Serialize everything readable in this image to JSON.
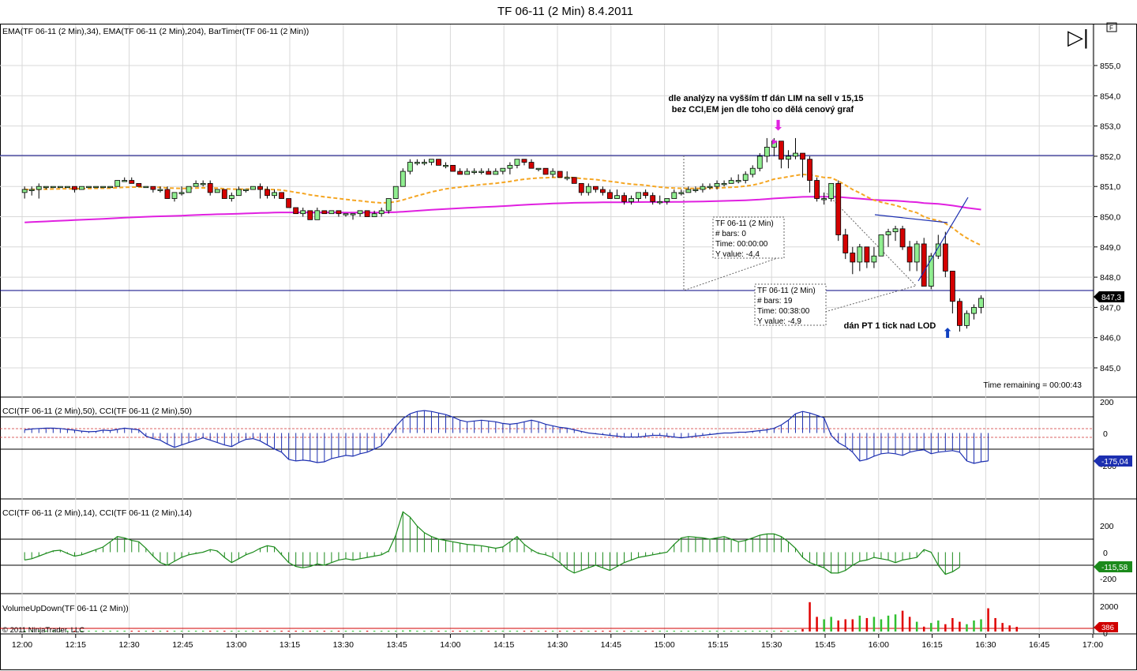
{
  "window": {
    "title": "TF 06-11 (2 Min)  8.4.2011"
  },
  "toolbar": {
    "play_glyph": "▷|",
    "pin_label": "F"
  },
  "price_panel": {
    "indicator_label": "EMA(TF 06-11 (2 Min),34), EMA(TF 06-11 (2 Min),204), BarTimer(TF 06-11 (2 Min))",
    "annotation_1": "dle analýzy na vyšším tf dán LIM na sell v 15,15",
    "annotation_2": "bez CCI,EM jen dle toho co dělá cenový graf",
    "annotation_3": "dán PT 1 tick  nad LOD",
    "time_remaining": "Time remaining = 00:00:43",
    "last_price_label": "847,3",
    "y_ticks": [
      "855,0",
      "854,0",
      "853,0",
      "852,0",
      "851,0",
      "850,0",
      "849,0",
      "848,0",
      "847,0",
      "846,0",
      "845,0"
    ],
    "measure_box_1": [
      "TF 06-11 (2 Min)",
      "# bars:    0",
      "Time:      00:00:00",
      "Y value:  -4,4"
    ],
    "measure_box_2": [
      "TF 06-11 (2 Min)",
      "# bars:    19",
      "Time:      00:38:00",
      "Y value:  -4,9"
    ],
    "colors": {
      "up_candle": "#90EE90",
      "down_candle": "#D40000",
      "ema34": "#F5A623",
      "ema204": "#E020E0",
      "lines": "#000080"
    }
  },
  "cci50_panel": {
    "label": "CCI(TF 06-11 (2 Min),50), CCI(TF 06-11 (2 Min),50)",
    "y_ticks": [
      "200",
      "0",
      "-200"
    ],
    "last_value": "-175,04",
    "color": "#1C2FB0"
  },
  "cci14_panel": {
    "label": "CCI(TF 06-11 (2 Min),14), CCI(TF 06-11 (2 Min),14)",
    "y_ticks": [
      "200",
      "0",
      "-200"
    ],
    "last_value": "-115,58",
    "color": "#1B8A1B"
  },
  "volume_panel": {
    "label": "VolumeUpDown(TF 06-11 (2 Min))",
    "copyright": "© 2011 NinjaTrader, LLC",
    "y_ticks": [
      "2000",
      "0"
    ],
    "last_value": "386"
  },
  "x_axis": {
    "ticks": [
      "12:00",
      "12:15",
      "12:30",
      "12:45",
      "13:00",
      "13:15",
      "13:30",
      "13:45",
      "14:00",
      "14:15",
      "14:30",
      "14:45",
      "15:00",
      "15:15",
      "15:30",
      "15:45",
      "16:00",
      "16:15",
      "16:30",
      "16:45",
      "17:00"
    ]
  },
  "chart_data": {
    "type": "candlestick",
    "title": "TF 06-11 (2 Min)  8.4.2011",
    "x_start": "12:00",
    "x_end": "17:00",
    "bar_interval_min": 2,
    "price_range": [
      844.3,
      856.0
    ],
    "candles_ohlc": [
      [
        850.8,
        851.0,
        850.6,
        850.9
      ],
      [
        850.9,
        851.0,
        850.7,
        850.9
      ],
      [
        850.9,
        851.1,
        850.6,
        851.0
      ],
      [
        851.0,
        851.0,
        850.9,
        851.0
      ],
      [
        851.0,
        851.0,
        851.0,
        851.0
      ],
      [
        851.0,
        851.0,
        851.0,
        851.0
      ],
      [
        851.0,
        851.0,
        851.0,
        851.0
      ],
      [
        851.0,
        851.0,
        850.8,
        850.9
      ],
      [
        850.9,
        851.0,
        850.9,
        851.0
      ],
      [
        851.0,
        851.0,
        851.0,
        851.0
      ],
      [
        851.0,
        851.0,
        851.0,
        851.0
      ],
      [
        851.0,
        851.0,
        851.0,
        851.0
      ],
      [
        851.0,
        851.0,
        851.0,
        851.0
      ],
      [
        851.0,
        851.2,
        851.0,
        851.2
      ],
      [
        851.2,
        851.3,
        851.2,
        851.2
      ],
      [
        851.2,
        851.3,
        851.1,
        851.1
      ],
      [
        851.1,
        851.1,
        851.0,
        851.0
      ],
      [
        851.0,
        851.0,
        851.0,
        851.0
      ],
      [
        851.0,
        851.0,
        850.8,
        850.9
      ],
      [
        850.9,
        851.0,
        850.8,
        850.9
      ],
      [
        850.9,
        851.0,
        850.6,
        850.6
      ],
      [
        850.6,
        850.8,
        850.5,
        850.8
      ],
      [
        850.8,
        851.0,
        850.7,
        850.8
      ],
      [
        850.8,
        851.0,
        850.8,
        851.0
      ],
      [
        851.0,
        851.2,
        851.0,
        851.1
      ],
      [
        851.1,
        851.2,
        851.0,
        851.1
      ],
      [
        851.1,
        851.2,
        850.7,
        850.8
      ],
      [
        850.8,
        850.9,
        850.8,
        850.9
      ],
      [
        850.9,
        850.9,
        850.6,
        850.6
      ],
      [
        850.6,
        850.8,
        850.5,
        850.7
      ],
      [
        850.7,
        851.0,
        850.7,
        850.9
      ],
      [
        850.9,
        850.9,
        850.8,
        850.9
      ],
      [
        850.9,
        851.0,
        850.9,
        851.0
      ],
      [
        851.0,
        851.1,
        850.6,
        850.9
      ],
      [
        850.9,
        851.0,
        850.6,
        850.7
      ],
      [
        850.7,
        850.9,
        850.6,
        850.8
      ],
      [
        850.8,
        850.8,
        850.6,
        850.6
      ],
      [
        850.6,
        850.6,
        850.3,
        850.3
      ],
      [
        850.3,
        850.3,
        850.1,
        850.1
      ],
      [
        850.1,
        850.3,
        850.0,
        850.2
      ],
      [
        850.2,
        850.2,
        849.9,
        849.9
      ],
      [
        849.9,
        850.3,
        849.9,
        850.2
      ],
      [
        850.2,
        850.2,
        850.1,
        850.1
      ],
      [
        850.1,
        850.2,
        850.1,
        850.2
      ],
      [
        850.2,
        850.2,
        850.0,
        850.1
      ],
      [
        850.1,
        850.1,
        850.0,
        850.1
      ],
      [
        850.1,
        850.1,
        849.9,
        850.1
      ],
      [
        850.1,
        850.2,
        850.0,
        850.2
      ],
      [
        850.2,
        850.2,
        850.0,
        850.0
      ],
      [
        850.0,
        850.2,
        850.0,
        850.1
      ],
      [
        850.1,
        850.3,
        850.0,
        850.2
      ],
      [
        850.2,
        850.6,
        850.1,
        850.6
      ],
      [
        850.6,
        851.0,
        850.6,
        851.0
      ],
      [
        851.0,
        851.6,
        851.0,
        851.5
      ],
      [
        851.5,
        851.9,
        851.4,
        851.8
      ],
      [
        851.8,
        851.9,
        851.7,
        851.8
      ],
      [
        851.8,
        851.9,
        851.7,
        851.8
      ],
      [
        851.8,
        851.9,
        851.7,
        851.9
      ],
      [
        851.9,
        851.9,
        851.7,
        851.7
      ],
      [
        851.7,
        851.8,
        851.6,
        851.7
      ],
      [
        851.7,
        851.7,
        851.5,
        851.5
      ],
      [
        851.5,
        851.6,
        851.4,
        851.4
      ],
      [
        851.4,
        851.6,
        851.4,
        851.5
      ],
      [
        851.5,
        851.6,
        851.4,
        851.5
      ],
      [
        851.5,
        851.6,
        851.4,
        851.5
      ],
      [
        851.5,
        851.6,
        851.4,
        851.4
      ],
      [
        851.4,
        851.6,
        851.4,
        851.5
      ],
      [
        851.5,
        851.6,
        851.4,
        851.6
      ],
      [
        851.6,
        851.8,
        851.4,
        851.7
      ],
      [
        851.7,
        851.9,
        851.6,
        851.9
      ],
      [
        851.9,
        851.9,
        851.7,
        851.8
      ],
      [
        851.8,
        851.9,
        851.6,
        851.6
      ],
      [
        851.6,
        851.6,
        851.5,
        851.6
      ],
      [
        851.6,
        851.6,
        851.4,
        851.4
      ],
      [
        851.4,
        851.6,
        851.3,
        851.5
      ],
      [
        851.5,
        851.5,
        851.3,
        851.3
      ],
      [
        851.3,
        851.5,
        851.2,
        851.3
      ],
      [
        851.3,
        851.3,
        851.1,
        851.1
      ],
      [
        851.1,
        851.1,
        850.7,
        850.8
      ],
      [
        850.8,
        851.1,
        850.7,
        851.0
      ],
      [
        851.0,
        851.0,
        850.8,
        850.9
      ],
      [
        850.9,
        851.0,
        850.7,
        850.8
      ],
      [
        850.8,
        850.9,
        850.6,
        850.6
      ],
      [
        850.6,
        850.9,
        850.6,
        850.7
      ],
      [
        850.7,
        850.8,
        850.4,
        850.5
      ],
      [
        850.5,
        850.7,
        850.4,
        850.6
      ],
      [
        850.6,
        850.8,
        850.5,
        850.8
      ],
      [
        850.8,
        850.9,
        850.6,
        850.7
      ],
      [
        850.7,
        850.8,
        850.4,
        850.5
      ],
      [
        850.5,
        850.7,
        850.4,
        850.5
      ],
      [
        850.5,
        850.6,
        850.4,
        850.6
      ],
      [
        850.6,
        850.9,
        850.6,
        850.8
      ],
      [
        850.8,
        850.9,
        850.7,
        850.8
      ],
      [
        850.8,
        851.0,
        850.8,
        850.9
      ],
      [
        850.9,
        851.0,
        850.8,
        850.9
      ],
      [
        850.9,
        851.1,
        850.8,
        851.0
      ],
      [
        851.0,
        851.1,
        850.9,
        851.0
      ],
      [
        851.0,
        851.2,
        850.9,
        851.1
      ],
      [
        851.1,
        851.2,
        851.0,
        851.1
      ],
      [
        851.1,
        851.3,
        851.1,
        851.2
      ],
      [
        851.2,
        851.4,
        851.1,
        851.2
      ],
      [
        851.2,
        851.5,
        851.1,
        851.4
      ],
      [
        851.4,
        851.7,
        851.3,
        851.6
      ],
      [
        851.6,
        852.1,
        851.5,
        852.0
      ],
      [
        852.0,
        852.6,
        851.8,
        852.3
      ],
      [
        852.3,
        852.6,
        852.0,
        852.5
      ],
      [
        852.5,
        852.5,
        851.6,
        851.9
      ],
      [
        851.9,
        852.2,
        851.6,
        852.0
      ],
      [
        852.0,
        852.6,
        851.9,
        852.1
      ],
      [
        852.1,
        852.1,
        851.3,
        851.9
      ],
      [
        851.9,
        852.0,
        850.8,
        851.2
      ],
      [
        851.2,
        851.3,
        850.5,
        850.6
      ],
      [
        850.6,
        850.8,
        850.4,
        850.6
      ],
      [
        850.6,
        851.1,
        850.5,
        851.1
      ],
      [
        851.1,
        851.2,
        849.2,
        849.4
      ],
      [
        849.4,
        849.6,
        848.6,
        848.8
      ],
      [
        848.8,
        849.0,
        848.1,
        848.5
      ],
      [
        848.5,
        849.1,
        848.2,
        849.0
      ],
      [
        849.0,
        849.0,
        848.3,
        848.5
      ],
      [
        848.5,
        849.0,
        848.3,
        848.7
      ],
      [
        848.7,
        849.3,
        848.7,
        849.4
      ],
      [
        849.4,
        849.6,
        849.0,
        849.5
      ],
      [
        849.5,
        849.7,
        849.2,
        849.6
      ],
      [
        849.6,
        849.7,
        848.9,
        849.0
      ],
      [
        849.0,
        849.2,
        848.2,
        848.5
      ],
      [
        848.5,
        849.2,
        848.2,
        849.1
      ],
      [
        849.1,
        849.3,
        848.0,
        847.7
      ],
      [
        847.7,
        848.8,
        847.6,
        848.7
      ],
      [
        848.7,
        849.4,
        848.6,
        849.1
      ],
      [
        849.1,
        849.5,
        848.0,
        848.2
      ],
      [
        848.2,
        848.2,
        846.8,
        847.2
      ],
      [
        847.2,
        847.3,
        846.2,
        846.4
      ],
      [
        846.4,
        846.9,
        846.3,
        846.8
      ],
      [
        846.8,
        847.1,
        846.6,
        847.0
      ],
      [
        847.0,
        847.4,
        846.8,
        847.3
      ]
    ],
    "ema34_start": 850.9,
    "ema204_start": 849.8,
    "cci50_values": [
      20,
      25,
      28,
      30,
      30,
      28,
      22,
      18,
      12,
      8,
      10,
      18,
      15,
      22,
      30,
      25,
      20,
      -20,
      -35,
      -45,
      -70,
      -90,
      -75,
      -60,
      -45,
      -30,
      -45,
      -60,
      -75,
      -85,
      -60,
      -40,
      -35,
      -50,
      -75,
      -100,
      -120,
      -165,
      -175,
      -170,
      -175,
      -185,
      -180,
      -160,
      -150,
      -140,
      -145,
      -130,
      -120,
      -100,
      -80,
      -20,
      40,
      90,
      120,
      135,
      140,
      135,
      125,
      115,
      100,
      80,
      70,
      75,
      80,
      75,
      70,
      60,
      55,
      60,
      70,
      80,
      70,
      55,
      45,
      35,
      30,
      20,
      10,
      0,
      -5,
      -10,
      -15,
      -20,
      -25,
      -25,
      -25,
      -20,
      -15,
      -15,
      -20,
      -25,
      -30,
      -25,
      -20,
      -15,
      -10,
      -5,
      0,
      0,
      5,
      5,
      10,
      15,
      20,
      30,
      50,
      80,
      120,
      135,
      125,
      110,
      95,
      -15,
      -60,
      -85,
      -120,
      -175,
      -165,
      -145,
      -130,
      -125,
      -130,
      -140,
      -120,
      -110,
      -105,
      -130,
      -120,
      -115,
      -110,
      -120,
      -175,
      -190,
      -180,
      -175
    ],
    "cci14_values": [
      -60,
      -50,
      -30,
      -10,
      10,
      15,
      -10,
      -30,
      -20,
      0,
      20,
      40,
      80,
      120,
      110,
      90,
      80,
      30,
      -30,
      -80,
      -100,
      -70,
      -40,
      -20,
      -10,
      0,
      20,
      10,
      -40,
      -80,
      -50,
      -20,
      0,
      30,
      50,
      40,
      -20,
      -80,
      -110,
      -120,
      -110,
      -90,
      -100,
      -80,
      -60,
      -50,
      -60,
      -50,
      -40,
      -30,
      -20,
      10,
      130,
      310,
      270,
      200,
      150,
      120,
      100,
      90,
      80,
      70,
      60,
      55,
      50,
      40,
      30,
      40,
      80,
      120,
      60,
      20,
      -10,
      -20,
      -40,
      -80,
      -130,
      -160,
      -140,
      -120,
      -100,
      -120,
      -140,
      -110,
      -80,
      -60,
      -40,
      -30,
      -20,
      -10,
      0,
      60,
      110,
      120,
      115,
      110,
      100,
      110,
      120,
      100,
      80,
      90,
      110,
      130,
      140,
      140,
      120,
      80,
      30,
      -40,
      -80,
      -100,
      -120,
      -160,
      -160,
      -140,
      -100,
      -70,
      -60,
      -40,
      -50,
      -60,
      -80,
      -60,
      -50,
      -40,
      20,
      0,
      -100,
      -170,
      -150,
      -115
    ],
    "volume_values": [
      50,
      10,
      10,
      10,
      10,
      30,
      20,
      40,
      10,
      10,
      10,
      20,
      10,
      10,
      10,
      10,
      20,
      10,
      10,
      30,
      20,
      10,
      20,
      10,
      10,
      20,
      30,
      10,
      10,
      10,
      20,
      10,
      10,
      10,
      20,
      20,
      20,
      30,
      20,
      10,
      20,
      20,
      20,
      20,
      10,
      20,
      10,
      10,
      20,
      20,
      20,
      40,
      30,
      80,
      100,
      60,
      50,
      60,
      60,
      40,
      60,
      50,
      40,
      60,
      80,
      50,
      40,
      40,
      50,
      30,
      50,
      40,
      50,
      40,
      40,
      40,
      60,
      40,
      40,
      60,
      30,
      30,
      40,
      60,
      30,
      40,
      30,
      20,
      30,
      40,
      30,
      30,
      20,
      30,
      30,
      20,
      30,
      30,
      20,
      30,
      30,
      20,
      30,
      30,
      20,
      40,
      40,
      40,
      60,
      200,
      2400,
      1200,
      1000,
      1200,
      900,
      1000,
      1000,
      1300,
      1100,
      1200,
      1000,
      1300,
      1400,
      1700,
      1200,
      800,
      400,
      700,
      900,
      600,
      1100,
      800,
      600,
      900,
      1000,
      1900,
      1100,
      700,
      500,
      386
    ]
  }
}
